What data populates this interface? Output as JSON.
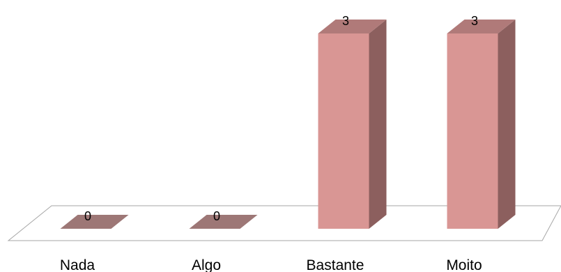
{
  "chart_data": {
    "type": "bar",
    "style": "3d-column",
    "categories": [
      "Nada",
      "Algo",
      "Bastante",
      "Moito"
    ],
    "values": [
      0,
      0,
      3,
      3
    ],
    "data_labels": [
      "0",
      "0",
      "3",
      "3"
    ],
    "ylim": [
      0,
      3
    ],
    "grid": false,
    "legend": "none"
  },
  "colors": {
    "bar_front": "#D99694",
    "bar_side": "#8C5F5E",
    "bar_top": "#B07A79",
    "floor_stroke": "#A6A6A6",
    "floor_fill": "#FFFFFF"
  }
}
